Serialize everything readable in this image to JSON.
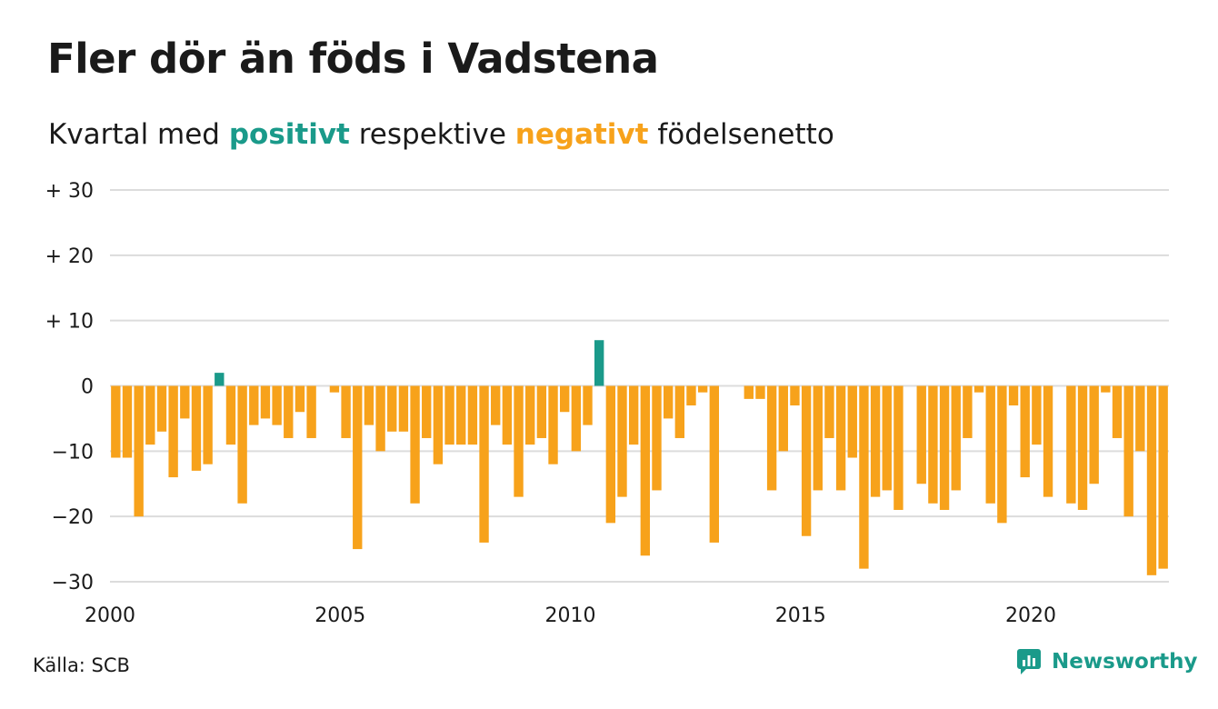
{
  "title": "Fler dör än föds i Vadstena",
  "subtitle": {
    "prefix": "Kvartal med ",
    "positive": "positivt",
    "middle": " respektive ",
    "negative": "negativt",
    "suffix": " födelsenetto"
  },
  "source": "Källa: SCB",
  "brand": "Newsworthy",
  "colors": {
    "positive": "#1a9a8a",
    "negative": "#f7a21b",
    "grid": "#dcdcdc",
    "text": "#1a1a1a"
  },
  "chart_data": {
    "type": "bar",
    "x_start": "2000 Q1",
    "x_end": "2023 Q1",
    "ylim": [
      -30,
      30
    ],
    "y_ticks": [
      {
        "value": 30,
        "label": "+ 30"
      },
      {
        "value": 20,
        "label": "+ 20"
      },
      {
        "value": 10,
        "label": "+ 10"
      },
      {
        "value": 0,
        "label": "0"
      },
      {
        "value": -10,
        "label": "−10"
      },
      {
        "value": -20,
        "label": "−20"
      },
      {
        "value": -30,
        "label": "−30"
      }
    ],
    "x_ticks": [
      {
        "value": 2000,
        "label": "2000"
      },
      {
        "value": 2005,
        "label": "2005"
      },
      {
        "value": 2010,
        "label": "2010"
      },
      {
        "value": 2015,
        "label": "2015"
      },
      {
        "value": 2020,
        "label": "2020"
      }
    ],
    "values": [
      -11,
      -11,
      -20,
      -9,
      -7,
      -14,
      -5,
      -13,
      -12,
      2,
      -9,
      -18,
      -6,
      -5,
      -6,
      -8,
      -4,
      -8,
      0,
      -1,
      -8,
      -25,
      -6,
      -10,
      -7,
      -7,
      -18,
      -8,
      -12,
      -9,
      -9,
      -9,
      -24,
      -6,
      -9,
      -17,
      -9,
      -8,
      -12,
      -4,
      -10,
      -6,
      7,
      -21,
      -17,
      -9,
      -26,
      -16,
      -5,
      -8,
      -3,
      -1,
      -24,
      0,
      0,
      -2,
      -2,
      -16,
      -10,
      -3,
      -23,
      -16,
      -8,
      -16,
      -11,
      -28,
      -17,
      -16,
      -19,
      0,
      -15,
      -18,
      -19,
      -16,
      -8,
      -1,
      -18,
      -21,
      -3,
      -14,
      -9,
      -17,
      0,
      -18,
      -19,
      -15,
      -1,
      -8,
      -20,
      -10,
      -29,
      -28
    ]
  }
}
